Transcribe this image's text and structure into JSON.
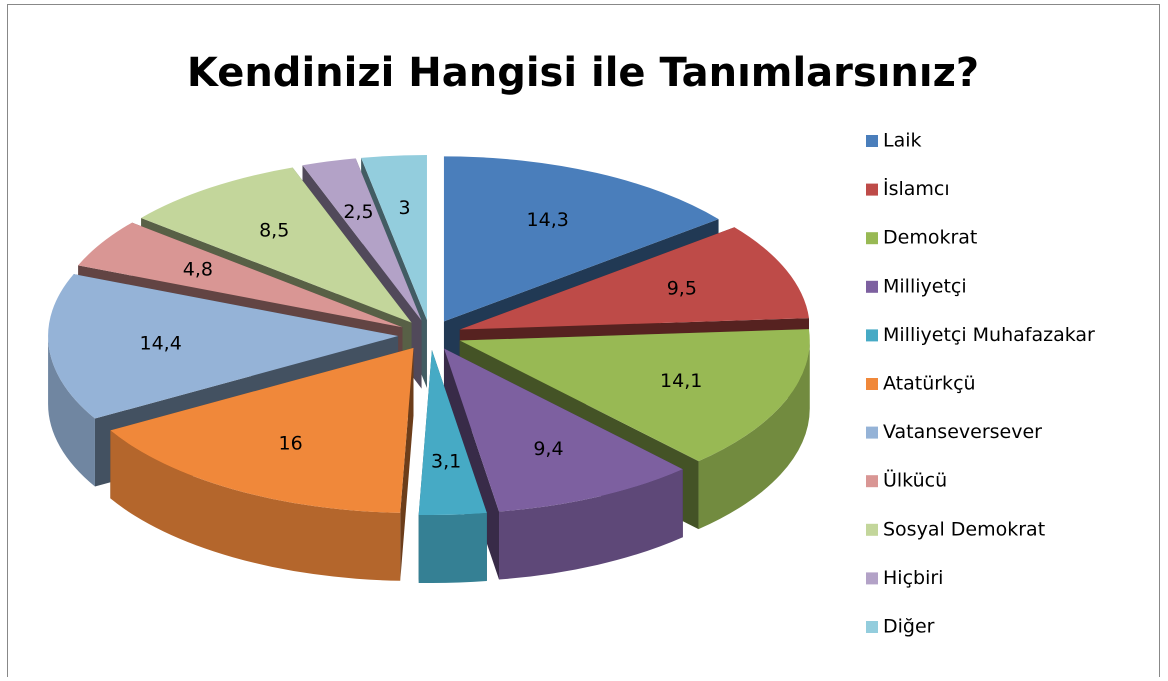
{
  "chart_data": {
    "type": "pie",
    "title": "Kendinizi Hangisi ile Tanımlarsınız?",
    "categories": [
      "Laik",
      "İslamcı",
      "Demokrat",
      "Milliyetçi",
      "Milliyetçi Muhafazakar",
      "Atatürkçü",
      "Vatanseversever",
      "Ülkücü",
      "Sosyal Demokrat",
      "Hiçbiri",
      "Diğer"
    ],
    "values": [
      14.3,
      9.5,
      14.1,
      9.4,
      3.1,
      16,
      14.4,
      4.8,
      8.5,
      2.5,
      3
    ],
    "value_labels": [
      "14,3",
      "9,5",
      "14,1",
      "9,4",
      "3,1",
      "16",
      "14,4",
      "4,8",
      "8,5",
      "2,5",
      "3"
    ],
    "colors": [
      "#4a7ebb",
      "#be4b48",
      "#98b954",
      "#7d60a0",
      "#46aac5",
      "#f0883a",
      "#95b3d7",
      "#d99694",
      "#c3d69b",
      "#b3a2c7",
      "#93cddd"
    ],
    "legend": "right"
  }
}
